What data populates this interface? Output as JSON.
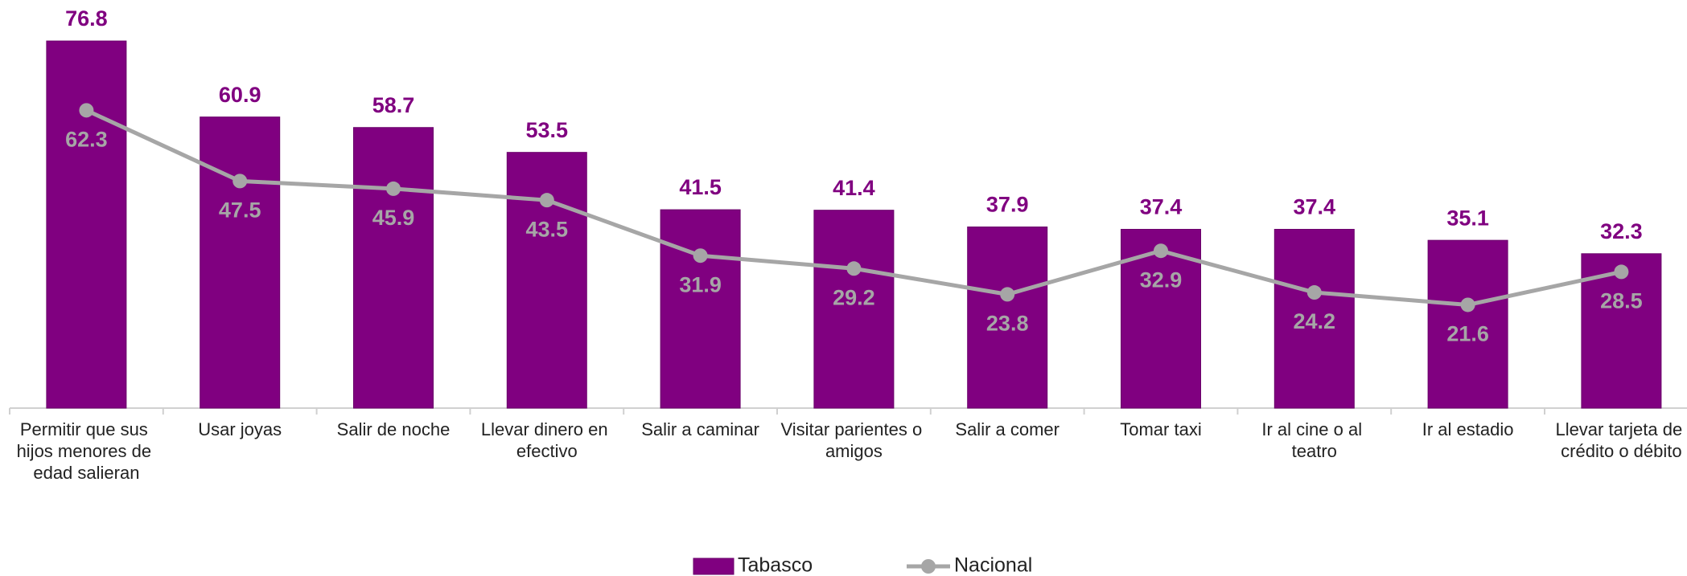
{
  "chart_data": {
    "type": "bar",
    "categories": [
      "Permitir que sus hijos menores de edad salieran",
      "Usar joyas",
      "Salir de noche",
      "Llevar dinero en efectivo",
      "Salir a caminar",
      "Visitar parientes o amigos",
      "Salir a comer",
      "Tomar taxi",
      "Ir al cine o al teatro",
      "Ir al estadio",
      "Llevar tarjeta de crédito o débito"
    ],
    "series": [
      {
        "name": "Tabasco",
        "type": "bar",
        "color": "#800080",
        "values": [
          76.8,
          60.9,
          58.7,
          53.5,
          41.5,
          41.4,
          37.9,
          37.4,
          37.4,
          35.1,
          32.3
        ]
      },
      {
        "name": "Nacional",
        "type": "line",
        "color": "#a6a6a6",
        "values": [
          62.3,
          47.5,
          45.9,
          43.5,
          31.9,
          29.2,
          23.8,
          32.9,
          24.2,
          21.6,
          28.5
        ]
      }
    ],
    "ylim": [
      0,
      80
    ],
    "legend": "bottom"
  }
}
